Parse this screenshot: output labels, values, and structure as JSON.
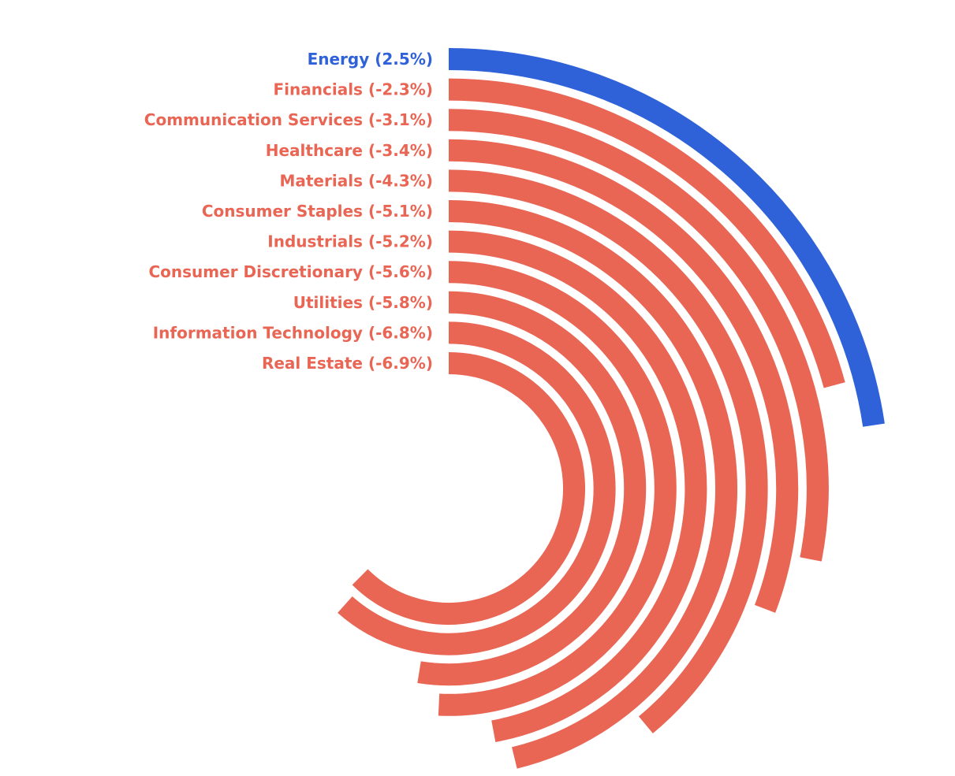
{
  "chart_data": {
    "type": "radial_bar",
    "categories": [
      "Energy",
      "Financials",
      "Communication Services",
      "Healthcare",
      "Materials",
      "Consumer Staples",
      "Industrials",
      "Consumer Discretionary",
      "Utilities",
      "Information Technology",
      "Real Estate"
    ],
    "values": [
      2.5,
      -2.3,
      -3.1,
      -3.4,
      -4.3,
      -5.1,
      -5.2,
      -5.6,
      -5.8,
      -6.8,
      -6.9
    ],
    "value_labels": [
      "(2.5%)",
      "(-2.3%)",
      "(-3.1%)",
      "(-3.4%)",
      "(-4.3%)",
      "(-5.1%)",
      "(-5.2%)",
      "(-5.6%)",
      "(-5.8%)",
      "(-6.8%)",
      "(-6.9%)"
    ],
    "positive_color": "#2f62d9",
    "negative_color": "#e96554"
  }
}
